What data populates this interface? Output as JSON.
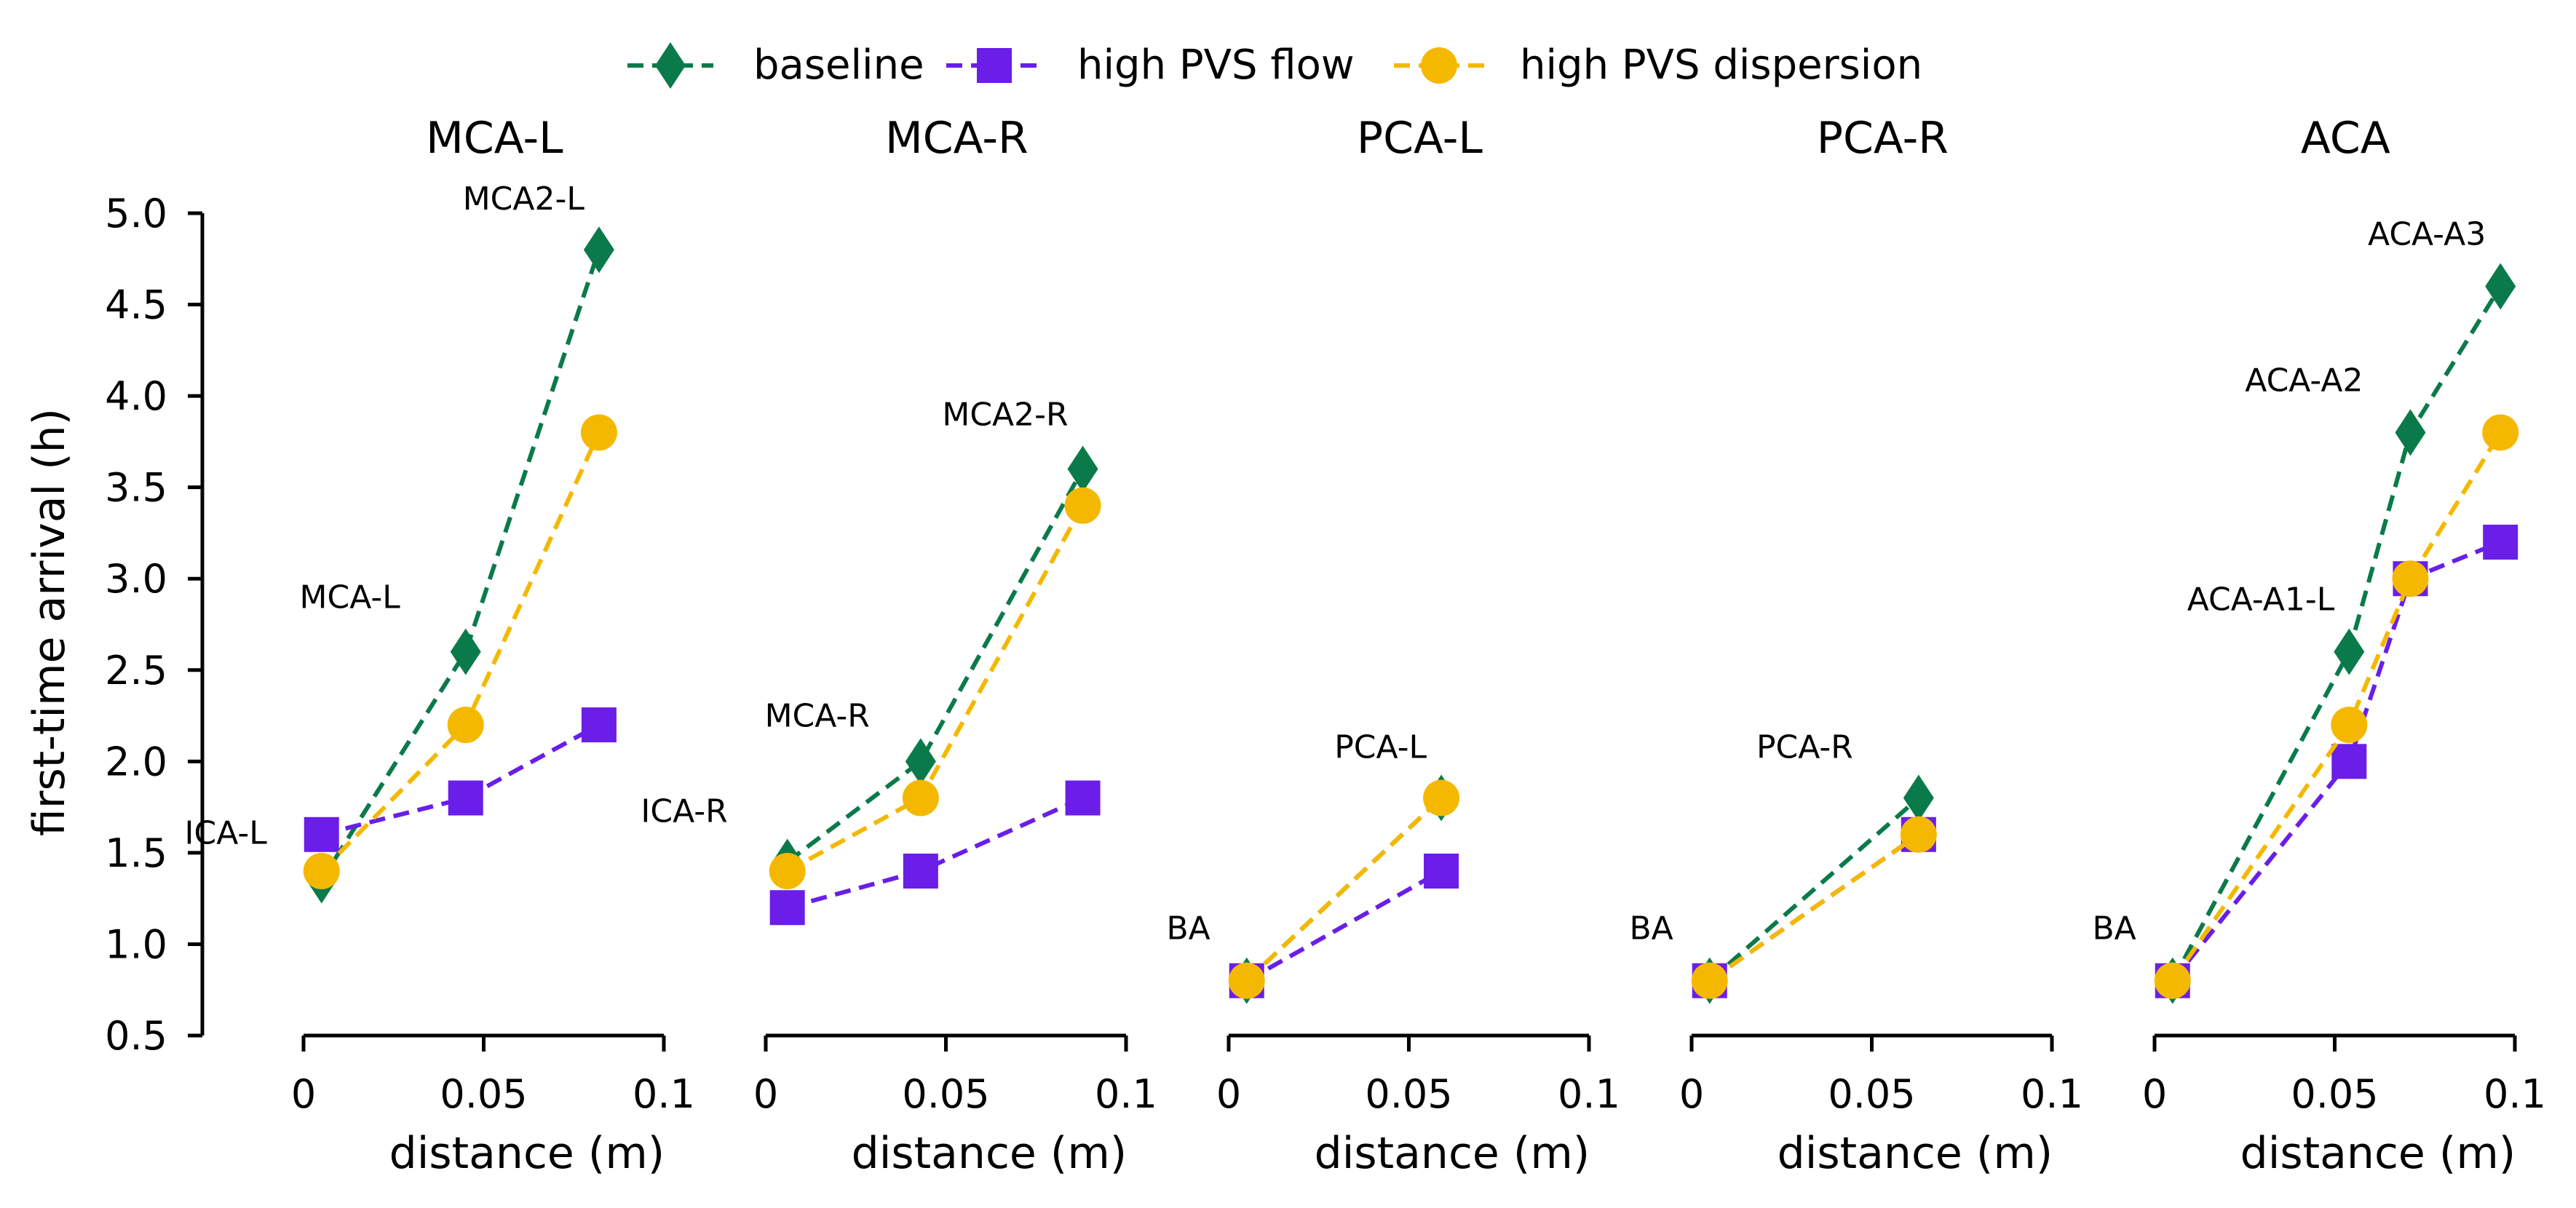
{
  "legend": [
    {
      "key": "baseline",
      "label": "baseline",
      "color": "#0b7a4b",
      "marker": "diamond"
    },
    {
      "key": "flow",
      "label": "high PVS flow",
      "color": "#6a1ee8",
      "marker": "square"
    },
    {
      "key": "dispersion",
      "label": "high PVS dispersion",
      "color": "#f5b800",
      "marker": "circle"
    }
  ],
  "chart_data": {
    "type": "line",
    "ylabel": "first-time arrival (h)",
    "xlabel": "distance (m)",
    "ylim": [
      0.5,
      5.0
    ],
    "yticks": [
      "0.5",
      "1.0",
      "1.5",
      "2.0",
      "2.5",
      "3.0",
      "3.5",
      "4.0",
      "4.5",
      "5.0"
    ],
    "xlim": [
      0,
      0.1
    ],
    "xticks": [
      "0",
      "0.05",
      "0.1"
    ],
    "line_style": "dashed",
    "panels": [
      {
        "title": "MCA-L",
        "x": [
          0.005,
          0.045,
          0.082
        ],
        "point_labels": [
          "ICA-L",
          "MCA-L",
          "MCA2-L"
        ],
        "series": [
          {
            "key": "baseline",
            "values": [
              1.35,
              2.6,
              4.8
            ]
          },
          {
            "key": "flow",
            "values": [
              1.6,
              1.8,
              2.2
            ]
          },
          {
            "key": "dispersion",
            "values": [
              1.4,
              2.2,
              3.8
            ]
          }
        ]
      },
      {
        "title": "MCA-R",
        "x": [
          0.006,
          0.043,
          0.088
        ],
        "point_labels": [
          "ICA-R",
          "MCA-R",
          "MCA2-R"
        ],
        "series": [
          {
            "key": "baseline",
            "values": [
              1.45,
              2.0,
              3.6
            ]
          },
          {
            "key": "flow",
            "values": [
              1.2,
              1.4,
              1.8
            ]
          },
          {
            "key": "dispersion",
            "values": [
              1.4,
              1.8,
              3.4
            ]
          }
        ]
      },
      {
        "title": "PCA-L",
        "x": [
          0.005,
          0.059
        ],
        "point_labels": [
          "BA",
          "PCA-L"
        ],
        "series": [
          {
            "key": "baseline",
            "values": [
              0.8,
              1.8
            ]
          },
          {
            "key": "flow",
            "values": [
              0.8,
              1.4
            ]
          },
          {
            "key": "dispersion",
            "values": [
              0.8,
              1.8
            ]
          }
        ]
      },
      {
        "title": "PCA-R",
        "x": [
          0.005,
          0.063
        ],
        "point_labels": [
          "BA",
          "PCA-R"
        ],
        "series": [
          {
            "key": "baseline",
            "values": [
              0.8,
              1.8
            ]
          },
          {
            "key": "flow",
            "values": [
              0.8,
              1.6
            ]
          },
          {
            "key": "dispersion",
            "values": [
              0.8,
              1.6
            ]
          }
        ]
      },
      {
        "title": "ACA",
        "x": [
          0.005,
          0.054,
          0.071,
          0.096
        ],
        "point_labels": [
          "BA",
          "ACA-A1-L",
          "ACA-A2",
          "ACA-A3"
        ],
        "series": [
          {
            "key": "baseline",
            "values": [
              0.8,
              2.6,
              3.8,
              4.6
            ]
          },
          {
            "key": "flow",
            "values": [
              0.8,
              2.0,
              3.0,
              3.2
            ]
          },
          {
            "key": "dispersion",
            "values": [
              0.8,
              2.2,
              3.0,
              3.8
            ]
          }
        ]
      }
    ]
  }
}
